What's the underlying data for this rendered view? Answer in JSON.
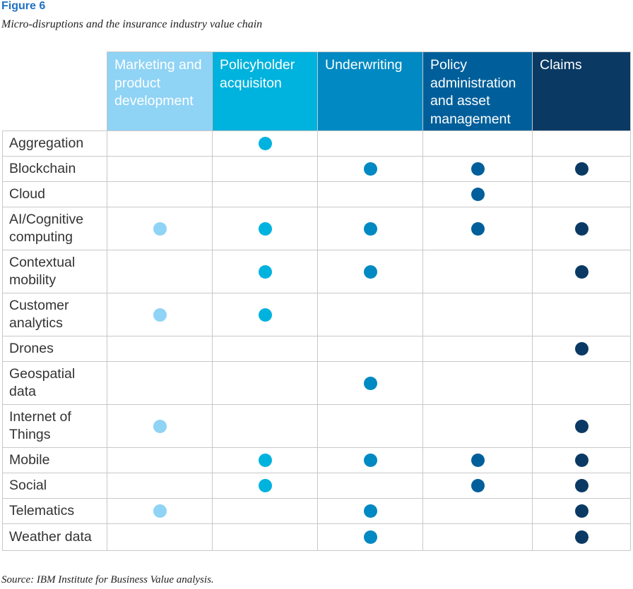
{
  "figure_label": "Figure 6",
  "title": "Micro-disruptions and the insurance industry value chain",
  "source": "Source: IBM Institute for Business Value analysis.",
  "chart_data": {
    "type": "table",
    "columns": [
      {
        "name": "Marketing and product development",
        "color": "#8fd3f5",
        "dot_color": "#8fd3f5"
      },
      {
        "name": "Policyholder acquisiton",
        "color": "#00b2de",
        "dot_color": "#00b2de"
      },
      {
        "name": "Underwriting",
        "color": "#0089c2",
        "dot_color": "#0089c2"
      },
      {
        "name": "Policy administration and asset management",
        "color": "#005f9a",
        "dot_color": "#005f9a"
      },
      {
        "name": "Claims",
        "color": "#0a3a64",
        "dot_color": "#0a3a64"
      }
    ],
    "rows": [
      {
        "label": "Aggregation",
        "marks": [
          false,
          true,
          false,
          false,
          false
        ]
      },
      {
        "label": "Blockchain",
        "marks": [
          false,
          false,
          true,
          true,
          true
        ]
      },
      {
        "label": "Cloud",
        "marks": [
          false,
          false,
          false,
          true,
          false
        ]
      },
      {
        "label": "AI/Cognitive computing",
        "marks": [
          true,
          true,
          true,
          true,
          true
        ]
      },
      {
        "label": "Contextual mobility",
        "marks": [
          false,
          true,
          true,
          false,
          true
        ]
      },
      {
        "label": "Customer analytics",
        "marks": [
          true,
          true,
          false,
          false,
          false
        ]
      },
      {
        "label": "Drones",
        "marks": [
          false,
          false,
          false,
          false,
          true
        ]
      },
      {
        "label": "Geospatial data",
        "marks": [
          false,
          false,
          true,
          false,
          false
        ]
      },
      {
        "label": "Internet of Things",
        "marks": [
          true,
          false,
          false,
          false,
          true
        ]
      },
      {
        "label": "Mobile",
        "marks": [
          false,
          true,
          true,
          true,
          true
        ]
      },
      {
        "label": "Social",
        "marks": [
          false,
          true,
          false,
          true,
          true
        ]
      },
      {
        "label": "Telematics",
        "marks": [
          true,
          false,
          true,
          false,
          true
        ]
      },
      {
        "label": "Weather data",
        "marks": [
          false,
          false,
          true,
          false,
          true
        ]
      }
    ]
  }
}
